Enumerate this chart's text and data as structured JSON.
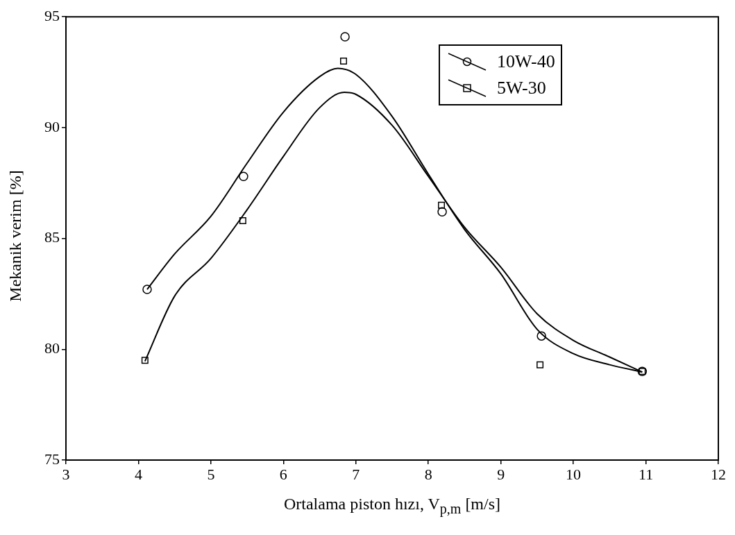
{
  "chart_data": {
    "type": "scatter",
    "xlabel": "Ortalama piston hızı, V$_{p,m}$ [m/s]",
    "ylabel": "Mekanik verim [%]",
    "xlim": [
      3,
      12
    ],
    "xticks": [
      3,
      4,
      5,
      6,
      7,
      8,
      9,
      10,
      11,
      12
    ],
    "ylim": [
      75,
      95
    ],
    "yticks": [
      75,
      80,
      85,
      90,
      95
    ],
    "grid": false,
    "legend": "top right",
    "series": [
      {
        "name": "10W-40",
        "type": "scatter",
        "marker": "circle",
        "color": "#000000",
        "x": [
          4.12,
          5.45,
          6.85,
          8.19,
          9.56,
          10.95
        ],
        "values": [
          82.7,
          87.8,
          94.1,
          86.2,
          80.6,
          79.0
        ]
      },
      {
        "name": "5W-30",
        "type": "scatter",
        "marker": "square",
        "color": "#000000",
        "x": [
          4.09,
          5.44,
          6.83,
          8.18,
          9.54,
          10.95
        ],
        "values": [
          79.5,
          85.8,
          93.0,
          86.5,
          79.3,
          79.0
        ]
      },
      {
        "type": "line",
        "marker": "none",
        "color": "#000000",
        "x": [
          4.12,
          4.5,
          5,
          5.5,
          6,
          6.5,
          6.75,
          7,
          7.5,
          8,
          8.5,
          9,
          9.5,
          10,
          10.5,
          10.95
        ],
        "values": [
          82.7,
          84.3,
          86.0,
          88.4,
          90.7,
          92.3,
          92.67,
          92.4,
          90.5,
          87.9,
          85.4,
          83.4,
          80.9,
          79.8,
          79.3,
          78.97
        ]
      },
      {
        "type": "line",
        "marker": "none",
        "color": "#000000",
        "x": [
          4.09,
          4.5,
          5,
          5.5,
          6,
          6.5,
          6.84,
          7,
          7.5,
          8,
          8.5,
          9,
          9.5,
          10,
          10.5,
          10.95
        ],
        "values": [
          79.46,
          82.4,
          84.1,
          86.3,
          88.7,
          90.9,
          91.59,
          91.5,
          90.1,
          87.8,
          85.5,
          83.7,
          81.6,
          80.4,
          79.65,
          78.97
        ]
      }
    ]
  }
}
